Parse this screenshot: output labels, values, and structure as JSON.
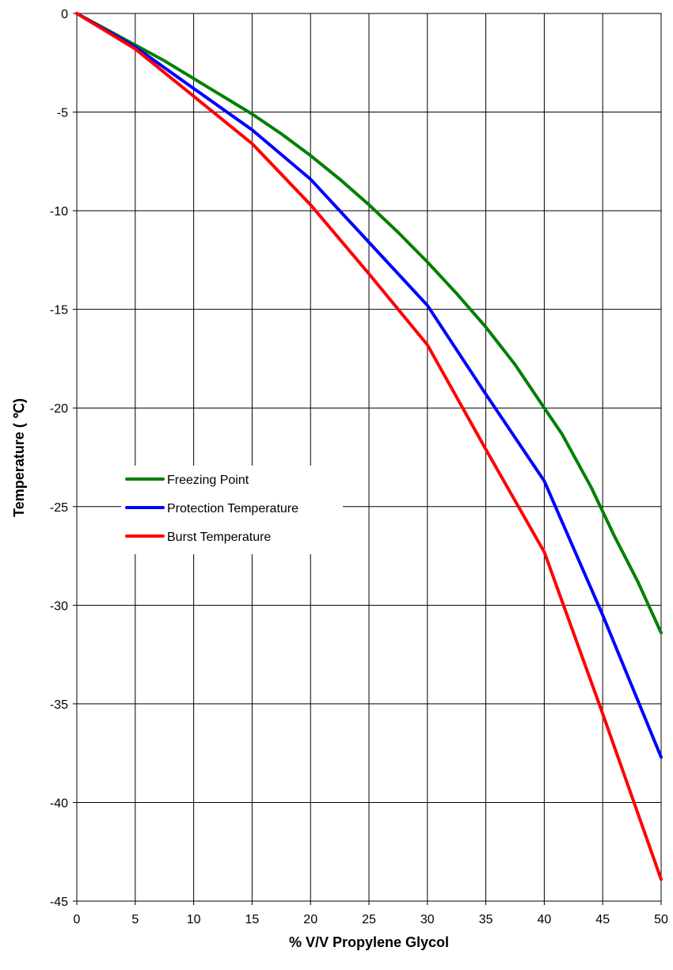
{
  "chart_data": {
    "type": "line",
    "title": "",
    "xlabel": "% V/V Propylene Glycol",
    "ylabel": "Temperature ( ℃)",
    "xlim": [
      0,
      50
    ],
    "ylim": [
      -45,
      0
    ],
    "xticks": [
      0,
      5,
      10,
      15,
      20,
      25,
      30,
      35,
      40,
      45,
      50
    ],
    "yticks": [
      0,
      -5,
      -10,
      -15,
      -20,
      -25,
      -30,
      -35,
      -40,
      -45
    ],
    "grid": true,
    "legend_position": "left, below middle",
    "series": [
      {
        "name": "Freezing Point",
        "color": "#008000",
        "x": [
          0,
          2.5,
          5,
          7.5,
          10,
          12.5,
          15,
          17.5,
          20,
          22.5,
          25,
          27.5,
          30,
          32.5,
          35,
          37.5,
          40,
          41.5,
          44,
          46,
          48,
          50
        ],
        "y": [
          0,
          -0.8,
          -1.6,
          -2.4,
          -3.3,
          -4.2,
          -5.1,
          -6.1,
          -7.2,
          -8.4,
          -9.7,
          -11.1,
          -12.6,
          -14.2,
          -15.9,
          -17.8,
          -20.0,
          -21.3,
          -24.0,
          -26.5,
          -28.8,
          -31.4
        ]
      },
      {
        "name": "Protection Temperature",
        "color": "#0000ff",
        "x": [
          0,
          5,
          10,
          15,
          20,
          25,
          30,
          35,
          40,
          45,
          50
        ],
        "y": [
          0,
          -1.7,
          -3.8,
          -5.9,
          -8.4,
          -11.6,
          -14.8,
          -19.3,
          -23.7,
          -30.5,
          -37.7
        ]
      },
      {
        "name": "Burst Temperature",
        "color": "#ff0000",
        "x": [
          0,
          5,
          10,
          15,
          20,
          25,
          30,
          35,
          40,
          45,
          50
        ],
        "y": [
          0,
          -1.8,
          -4.2,
          -6.6,
          -9.7,
          -13.2,
          -16.8,
          -22.1,
          -27.3,
          -35.5,
          -43.9
        ]
      }
    ]
  }
}
